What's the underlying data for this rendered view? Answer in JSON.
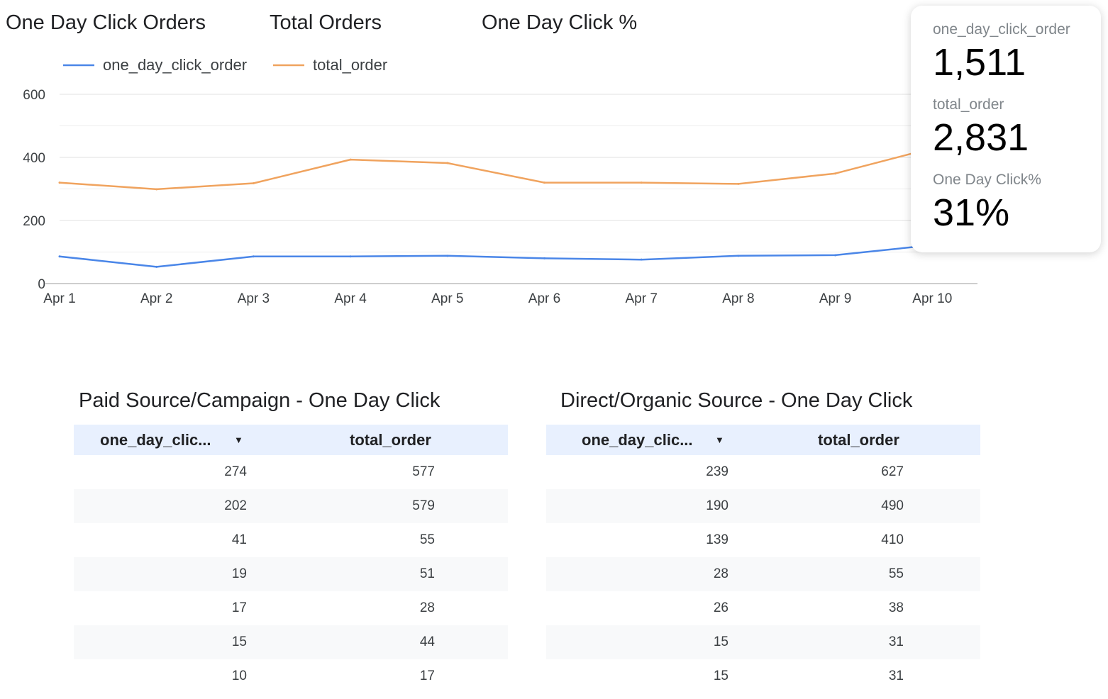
{
  "header": {
    "titles": [
      "One Day Click Orders",
      "Total Orders",
      "One Day Click %"
    ]
  },
  "chart_data": {
    "type": "line",
    "x": [
      "Apr 1",
      "Apr 2",
      "Apr 3",
      "Apr 4",
      "Apr 5",
      "Apr 6",
      "Apr 7",
      "Apr 8",
      "Apr 9",
      "Apr 10"
    ],
    "series": [
      {
        "name": "one_day_click_order",
        "color": "#4a86e8",
        "values": [
          86,
          53,
          86,
          86,
          88,
          80,
          76,
          88,
          90,
          122
        ]
      },
      {
        "name": "total_order",
        "color": "#f0a35e",
        "values": [
          320,
          299,
          318,
          393,
          382,
          320,
          320,
          316,
          349,
          429
        ]
      }
    ],
    "yticks": [
      0,
      200,
      400,
      600
    ],
    "ylim": [
      0,
      600
    ],
    "grid": true,
    "legend_position": "top-left"
  },
  "kpi": [
    {
      "label": "one_day_click_order",
      "value": "1,511"
    },
    {
      "label": "total_order",
      "value": "2,831"
    },
    {
      "label": "One Day Click%",
      "value": "31%"
    }
  ],
  "tables": [
    {
      "title": "Paid Source/Campaign - One Day Click",
      "columns": [
        "one_day_clic...",
        "total_order"
      ],
      "sort_icon": "caret-down-icon",
      "rows": [
        [
          "274",
          "577"
        ],
        [
          "202",
          "579"
        ],
        [
          "41",
          "55"
        ],
        [
          "19",
          "51"
        ],
        [
          "17",
          "28"
        ],
        [
          "15",
          "44"
        ],
        [
          "10",
          "17"
        ]
      ]
    },
    {
      "title": "Direct/Organic Source - One Day Click",
      "columns": [
        "one_day_clic...",
        "total_order"
      ],
      "sort_icon": "caret-down-icon",
      "rows": [
        [
          "239",
          "627"
        ],
        [
          "190",
          "490"
        ],
        [
          "139",
          "410"
        ],
        [
          "28",
          "55"
        ],
        [
          "26",
          "38"
        ],
        [
          "15",
          "31"
        ],
        [
          "15",
          "31"
        ]
      ]
    }
  ]
}
